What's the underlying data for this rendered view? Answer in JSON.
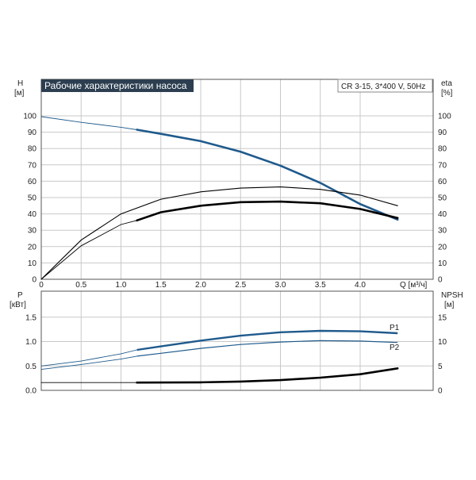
{
  "chart_data": [
    {
      "type": "line",
      "title": "Рабочие характеристики насоса",
      "info_box": "CR 3-15, 3*400 V, 50Hz",
      "y_left_label": [
        "H",
        "[м]"
      ],
      "y_right_label": [
        "eta",
        "[%]"
      ],
      "x_label": "Q [м³/ч]",
      "xlim": [
        0,
        4.5
      ],
      "ylim": [
        0,
        110
      ],
      "x_ticks": [
        "0",
        "0.5",
        "1.0",
        "1.5",
        "2.0",
        "2.5",
        "3.0",
        "3.5",
        "4.0"
      ],
      "y_ticks_left": [
        "0",
        "10",
        "20",
        "30",
        "40",
        "50",
        "60",
        "70",
        "80",
        "90",
        "100"
      ],
      "y_ticks_right": [
        "0",
        "10",
        "20",
        "30",
        "40",
        "50",
        "60",
        "70",
        "80",
        "90",
        "100"
      ],
      "grid": true,
      "series": [
        {
          "role": "head-thin",
          "color": "#1f5a8c",
          "points": [
            [
              0,
              99.5
            ],
            [
              0.5,
              96
            ],
            [
              1.0,
              93
            ],
            [
              1.2,
              91.5
            ]
          ]
        },
        {
          "role": "head-bold",
          "color": "#1f5a8c",
          "points": [
            [
              1.2,
              91.5
            ],
            [
              1.5,
              89
            ],
            [
              2.0,
              84.5
            ],
            [
              2.5,
              78
            ],
            [
              3.0,
              69.5
            ],
            [
              3.5,
              59
            ],
            [
              4.0,
              46
            ],
            [
              4.47,
              36.5
            ]
          ]
        },
        {
          "role": "efficiency-upper",
          "color": "#000000",
          "points": [
            [
              0,
              0
            ],
            [
              0.5,
              24
            ],
            [
              1.0,
              40
            ],
            [
              1.5,
              49
            ],
            [
              2.0,
              53.5
            ],
            [
              2.5,
              55.8
            ],
            [
              3.0,
              56.5
            ],
            [
              3.5,
              55
            ],
            [
              4.0,
              51.5
            ],
            [
              4.47,
              45
            ]
          ]
        },
        {
          "role": "efficiency-lower-thin",
          "color": "#000000",
          "points": [
            [
              0,
              0
            ],
            [
              0.5,
              20.5
            ],
            [
              1.0,
              33.5
            ],
            [
              1.2,
              36
            ]
          ]
        },
        {
          "role": "efficiency-lower-bold",
          "color": "#000000",
          "points": [
            [
              1.2,
              36
            ],
            [
              1.5,
              41
            ],
            [
              2.0,
              45
            ],
            [
              2.5,
              47.2
            ],
            [
              3.0,
              47.5
            ],
            [
              3.5,
              46.5
            ],
            [
              4.0,
              43
            ],
            [
              4.47,
              37.5
            ]
          ]
        }
      ]
    },
    {
      "type": "line",
      "y_left_label": [
        "P",
        "[кВт]"
      ],
      "y_right_label": [
        "NPSH",
        "[м]"
      ],
      "xlim": [
        0,
        4.5
      ],
      "ylim": [
        0,
        1.75
      ],
      "y2lim": [
        0,
        17.5
      ],
      "y_ticks_left": [
        "0.0",
        "0.5",
        "1.0",
        "1.5"
      ],
      "y_ticks_right": [
        "0",
        "5",
        "10",
        "15"
      ],
      "grid": true,
      "series": [
        {
          "name": "P1",
          "color": "#1f5a8c",
          "points": [
            [
              0,
              0.5
            ],
            [
              0.5,
              0.6
            ],
            [
              1.0,
              0.75
            ],
            [
              1.2,
              0.83
            ],
            [
              1.5,
              0.9
            ],
            [
              2.0,
              1.02
            ],
            [
              2.5,
              1.12
            ],
            [
              3.0,
              1.19
            ],
            [
              3.5,
              1.22
            ],
            [
              4.0,
              1.21
            ],
            [
              4.47,
              1.17
            ]
          ]
        },
        {
          "name": "P2",
          "color": "#1f5a8c",
          "points": [
            [
              0,
              0.43
            ],
            [
              0.5,
              0.53
            ],
            [
              1.0,
              0.64
            ],
            [
              1.2,
              0.7
            ],
            [
              1.5,
              0.76
            ],
            [
              2.0,
              0.86
            ],
            [
              2.5,
              0.94
            ],
            [
              3.0,
              0.99
            ],
            [
              3.5,
              1.02
            ],
            [
              4.0,
              1.01
            ],
            [
              4.47,
              0.98
            ]
          ]
        },
        {
          "role": "npsh-thin",
          "color": "#000000",
          "axis": "right",
          "points": [
            [
              0,
              1.6
            ],
            [
              1.2,
              1.6
            ]
          ]
        },
        {
          "role": "npsh-bold",
          "color": "#000000",
          "axis": "right",
          "points": [
            [
              1.2,
              1.6
            ],
            [
              2.0,
              1.65
            ],
            [
              2.5,
              1.8
            ],
            [
              3.0,
              2.1
            ],
            [
              3.5,
              2.6
            ],
            [
              4.0,
              3.3
            ],
            [
              4.47,
              4.5
            ]
          ]
        }
      ]
    }
  ]
}
